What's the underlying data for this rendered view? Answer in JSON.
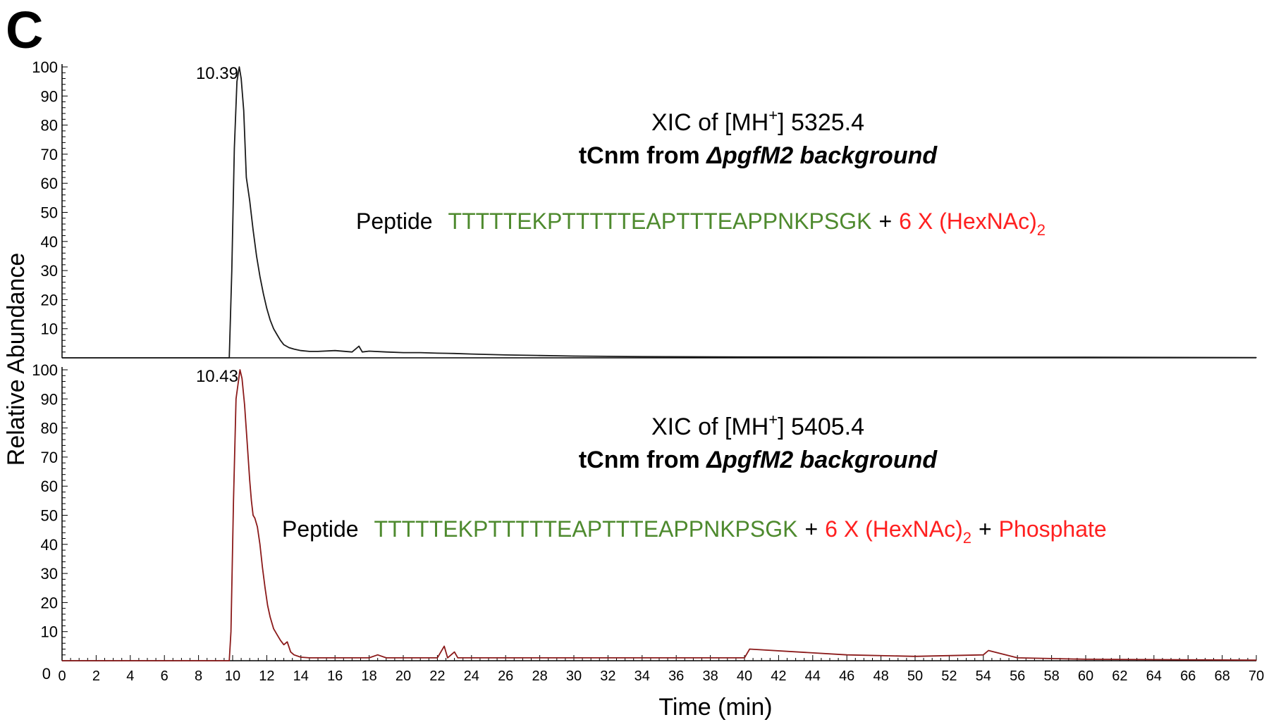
{
  "panel_label": "C",
  "colors": {
    "top_trace": "#1a1a1a",
    "bottom_trace": "#8b1a1a",
    "peptide_sequence": "#4e8a2e",
    "modification": "#ff2020",
    "baseline_accent": "#5cc05c",
    "axis": "#000000"
  },
  "chart_data": [
    {
      "type": "line",
      "xlabel": "Time (min)",
      "ylabel": "Relative Abundance",
      "xlim": [
        0,
        70
      ],
      "ylim": [
        0,
        100
      ],
      "x_ticks": [
        "0",
        "2",
        "4",
        "6",
        "8",
        "10",
        "12",
        "14",
        "16",
        "18",
        "20",
        "22",
        "24",
        "26",
        "28",
        "30",
        "32",
        "34",
        "36",
        "38",
        "40",
        "42",
        "44",
        "46",
        "48",
        "50",
        "52",
        "54",
        "56",
        "58",
        "60",
        "62",
        "64",
        "66",
        "68",
        "70"
      ],
      "y_ticks": [
        "10",
        "20",
        "30",
        "40",
        "50",
        "60",
        "70",
        "80",
        "90",
        "100"
      ],
      "peak_label": "10.39",
      "annotation": {
        "line1": "XIC of [MH",
        "line1_sup": "+",
        "line1_end": "] 5325.4",
        "line2_bold": "tCnm from ",
        "line2_italic": "ΔpgfM2 background",
        "peptide_label": "Peptide",
        "sequence": "TTTTTEKPTTTTTEAPTTTEAPPNKPSGK",
        "plus": "+",
        "mod1": "6 X (HexNAc)",
        "mod1_sub": "2"
      },
      "series": [
        {
          "x": [
            0,
            9.8,
            9.95,
            10.1,
            10.25,
            10.39,
            10.5,
            10.65,
            10.8,
            11.0,
            11.2,
            11.4,
            11.6,
            11.8,
            12.0,
            12.2,
            12.4,
            12.6,
            12.8,
            13.0,
            13.3,
            13.6,
            14.0,
            14.5,
            15.0,
            16.0,
            17.0,
            17.4,
            17.6,
            18.0,
            19.0,
            20.0,
            21.0,
            22.0,
            23.0,
            24.0,
            26.0,
            28.0,
            30.0,
            32.0,
            34.0,
            40.0,
            50.0,
            60.0,
            70.0
          ],
          "y": [
            0,
            0,
            30,
            72,
            95,
            100,
            96,
            85,
            62,
            54,
            44,
            35,
            28,
            22,
            17,
            13,
            10,
            8,
            6,
            4.5,
            3.5,
            3.0,
            2.5,
            2.2,
            2.2,
            2.5,
            2.0,
            4.0,
            2.0,
            2.3,
            2.0,
            1.8,
            1.8,
            1.6,
            1.5,
            1.3,
            1.0,
            0.8,
            0.6,
            0.5,
            0.4,
            0.3,
            0.2,
            0.2,
            0.1
          ]
        }
      ]
    },
    {
      "type": "line",
      "xlabel": "Time (min)",
      "ylabel": "Relative Abundance",
      "xlim": [
        0,
        70
      ],
      "ylim": [
        0,
        100
      ],
      "x_ticks": [
        "0",
        "2",
        "4",
        "6",
        "8",
        "10",
        "12",
        "14",
        "16",
        "18",
        "20",
        "22",
        "24",
        "26",
        "28",
        "30",
        "32",
        "34",
        "36",
        "38",
        "40",
        "42",
        "44",
        "46",
        "48",
        "50",
        "52",
        "54",
        "56",
        "58",
        "60",
        "62",
        "64",
        "66",
        "68",
        "70"
      ],
      "y_ticks": [
        "10",
        "20",
        "30",
        "40",
        "50",
        "60",
        "70",
        "80",
        "90",
        "100"
      ],
      "peak_label": "10.43",
      "annotation": {
        "line1": "XIC of [MH",
        "line1_sup": "+",
        "line1_end": "] 5405.4",
        "line2_bold": "tCnm from ",
        "line2_italic": "ΔpgfM2 background",
        "peptide_label": "Peptide",
        "sequence": "TTTTTEKPTTTTTEAPTTTEAPPNKPSGK",
        "plus": "+",
        "mod1": "6 X (HexNAc)",
        "mod1_sub": "2",
        "plus2": "+",
        "mod2": "Phosphate"
      },
      "series": [
        {
          "x": [
            0,
            9.8,
            9.9,
            10.05,
            10.2,
            10.43,
            10.55,
            10.7,
            10.85,
            11.0,
            11.1,
            11.2,
            11.3,
            11.45,
            11.6,
            11.75,
            11.9,
            12.05,
            12.2,
            12.4,
            12.6,
            12.8,
            13.0,
            13.2,
            13.4,
            13.6,
            14.0,
            14.5,
            15.0,
            16.0,
            18.0,
            18.5,
            19.0,
            20.0,
            22.0,
            22.4,
            22.6,
            23.0,
            23.2,
            24.0,
            26.0,
            30.0,
            34.0,
            40.0,
            40.3,
            46.0,
            50.0,
            54.0,
            54.3,
            56.0,
            60.0,
            70.0
          ],
          "y": [
            0,
            0,
            10,
            55,
            90,
            100,
            97,
            88,
            75,
            62,
            55,
            50,
            49,
            46,
            40,
            32,
            25,
            19,
            15,
            11,
            9,
            7,
            5.5,
            6.5,
            3.0,
            2.0,
            1.2,
            1.0,
            1.0,
            1.0,
            1.0,
            2.0,
            1.0,
            1.0,
            1.0,
            5.0,
            1.0,
            3.0,
            1.0,
            1.0,
            1.0,
            1.0,
            1.0,
            1.0,
            4.0,
            2.0,
            1.5,
            2.0,
            3.5,
            1.0,
            0.5,
            0.2
          ]
        }
      ]
    }
  ]
}
